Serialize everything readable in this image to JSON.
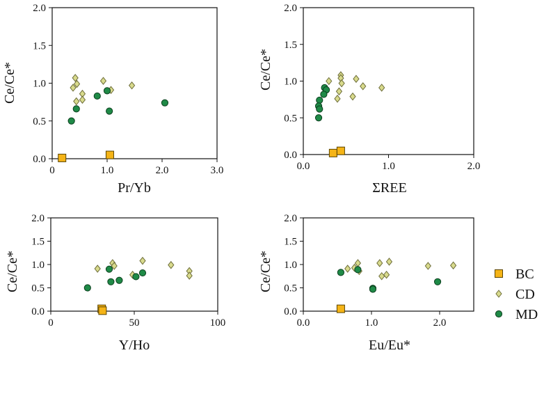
{
  "chart_data": [
    {
      "type": "scatter",
      "xlabel": "Pr/Yb",
      "ylabel": "Ce/Ce*",
      "xlim": [
        0,
        3.0
      ],
      "ylim": [
        0,
        2.0
      ],
      "xticks": [
        "0",
        "1.0",
        "2.0",
        "3.0"
      ],
      "yticks": [
        "0.0",
        "0.5",
        "1.0",
        "1.5",
        "2.0"
      ],
      "series": [
        {
          "name": "BC",
          "points": [
            [
              0.18,
              0.01
            ],
            [
              1.05,
              0.05
            ]
          ]
        },
        {
          "name": "CD",
          "points": [
            [
              0.42,
              1.07
            ],
            [
              0.38,
              0.94
            ],
            [
              0.45,
              0.99
            ],
            [
              0.55,
              0.86
            ],
            [
              0.44,
              0.76
            ],
            [
              0.55,
              0.78
            ],
            [
              0.93,
              1.03
            ],
            [
              1.07,
              0.91
            ],
            [
              1.45,
              0.97
            ]
          ]
        },
        {
          "name": "MD",
          "points": [
            [
              0.35,
              0.5
            ],
            [
              0.44,
              0.66
            ],
            [
              0.82,
              0.83
            ],
            [
              1.0,
              0.9
            ],
            [
              1.04,
              0.63
            ],
            [
              2.05,
              0.74
            ]
          ]
        }
      ]
    },
    {
      "type": "scatter",
      "xlabel": "ΣREE",
      "ylabel": "Ce/Ce*",
      "xlim": [
        0,
        2.0
      ],
      "ylim": [
        0,
        2.0
      ],
      "xticks": [
        "0.0",
        "1.0",
        "2.0"
      ],
      "yticks": [
        "0.0",
        "0.5",
        "1.0",
        "1.5",
        "2.0"
      ],
      "series": [
        {
          "name": "BC",
          "points": [
            [
              0.35,
              0.02
            ],
            [
              0.44,
              0.05
            ]
          ]
        },
        {
          "name": "CD",
          "points": [
            [
              0.3,
              1.0
            ],
            [
              0.44,
              1.08
            ],
            [
              0.44,
              1.04
            ],
            [
              0.45,
              0.97
            ],
            [
              0.62,
              1.03
            ],
            [
              0.7,
              0.93
            ],
            [
              0.42,
              0.86
            ],
            [
              0.58,
              0.79
            ],
            [
              0.4,
              0.76
            ],
            [
              0.92,
              0.91
            ]
          ]
        },
        {
          "name": "MD",
          "points": [
            [
              0.25,
              0.91
            ],
            [
              0.27,
              0.88
            ],
            [
              0.24,
              0.82
            ],
            [
              0.19,
              0.74
            ],
            [
              0.18,
              0.66
            ],
            [
              0.19,
              0.62
            ],
            [
              0.18,
              0.5
            ]
          ]
        }
      ]
    },
    {
      "type": "scatter",
      "xlabel": "Y/Ho",
      "ylabel": "Ce/Ce*",
      "xlim": [
        0,
        100
      ],
      "ylim": [
        0,
        2.0
      ],
      "xticks": [
        "0",
        "50",
        "100"
      ],
      "yticks": [
        "0.0",
        "0.5",
        "1.0",
        "1.5",
        "2.0"
      ],
      "series": [
        {
          "name": "BC",
          "points": [
            [
              30.5,
              0.05
            ],
            [
              31,
              0.01
            ]
          ]
        },
        {
          "name": "CD",
          "points": [
            [
              28,
              0.91
            ],
            [
              37,
              1.03
            ],
            [
              38,
              0.97
            ],
            [
              49,
              0.78
            ],
            [
              55,
              1.08
            ],
            [
              72,
              0.99
            ],
            [
              83,
              0.86
            ],
            [
              83,
              0.76
            ]
          ]
        },
        {
          "name": "MD",
          "points": [
            [
              22,
              0.5
            ],
            [
              35,
              0.9
            ],
            [
              36,
              0.63
            ],
            [
              41,
              0.66
            ],
            [
              51,
              0.74
            ],
            [
              55,
              0.82
            ]
          ]
        }
      ]
    },
    {
      "type": "scatter",
      "xlabel": "Eu/Eu*",
      "ylabel": "Ce/Ce*",
      "xlim": [
        0,
        2.5
      ],
      "ylim": [
        0,
        2.0
      ],
      "xticks": [
        "0.0",
        "1.0",
        "2.0"
      ],
      "yticks": [
        "0.0",
        "0.5",
        "1.0",
        "1.5",
        "2.0"
      ],
      "series": [
        {
          "name": "BC",
          "points": [
            [
              0.55,
              0.05
            ]
          ]
        },
        {
          "name": "CD",
          "points": [
            [
              0.65,
              0.91
            ],
            [
              0.75,
              0.93
            ],
            [
              0.8,
              1.03
            ],
            [
              0.82,
              0.86
            ],
            [
              1.12,
              1.03
            ],
            [
              1.15,
              0.75
            ],
            [
              1.22,
              0.78
            ],
            [
              1.26,
              1.06
            ],
            [
              1.83,
              0.97
            ],
            [
              2.2,
              0.98
            ]
          ]
        },
        {
          "name": "MD",
          "points": [
            [
              0.55,
              0.83
            ],
            [
              0.8,
              0.89
            ],
            [
              1.02,
              0.49
            ],
            [
              1.02,
              0.47
            ],
            [
              1.97,
              0.63
            ]
          ]
        }
      ]
    }
  ],
  "legend": [
    {
      "name": "BC",
      "marker": "square",
      "fill": "#f5b417",
      "stroke": "#5a4400"
    },
    {
      "name": "CD",
      "marker": "diamond",
      "fill": "#d8da8c",
      "stroke": "#6d6d3a"
    },
    {
      "name": "MD",
      "marker": "circle",
      "fill": "#1f8a47",
      "stroke": "#0c3f1e"
    }
  ]
}
